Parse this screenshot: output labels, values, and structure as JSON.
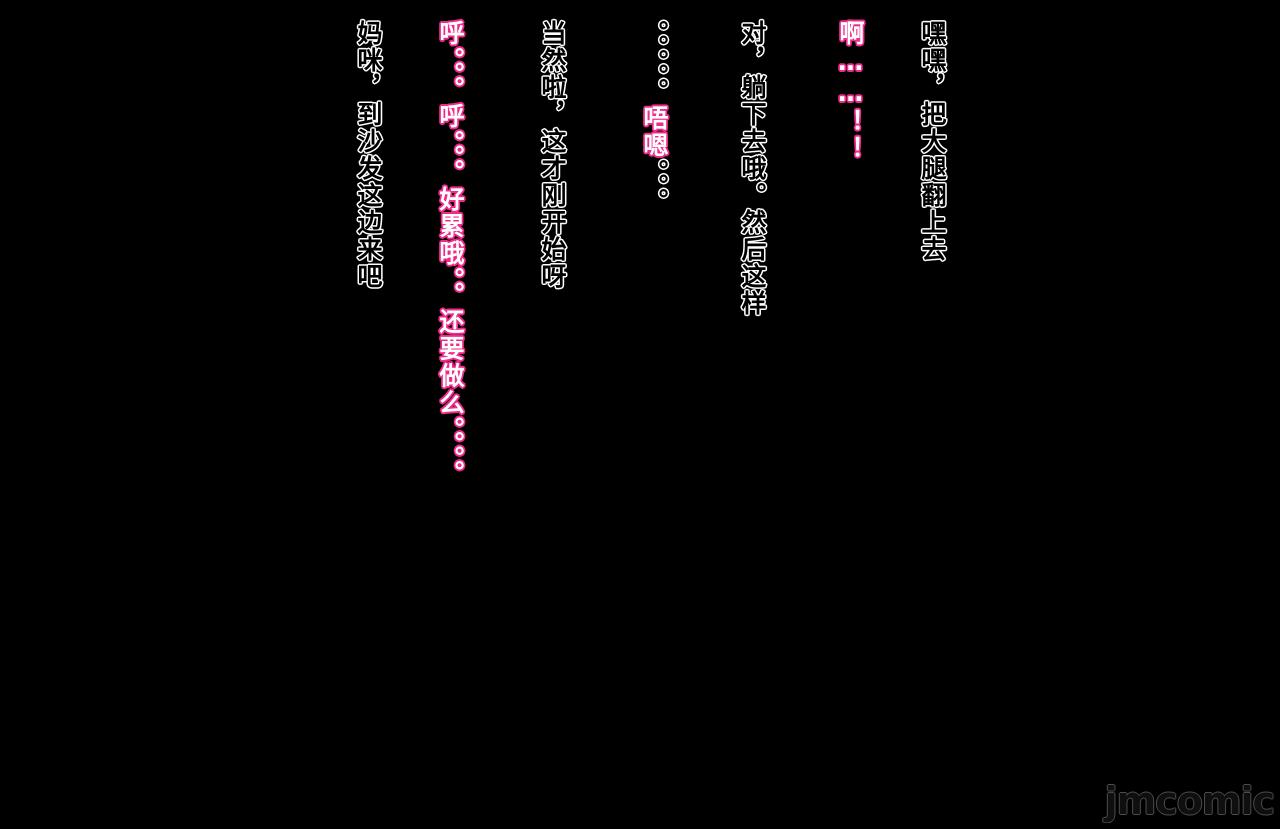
{
  "lines": [
    {
      "text": "嘿嘿，把大腿翻上去",
      "style": "white"
    },
    {
      "text": "啊……！！",
      "style": "pink"
    },
    {
      "text": "对，躺下去哦。然后这样",
      "style": "white"
    },
    {
      "text": "。。。。。唔嗯。。。",
      "style": "mixed"
    },
    {
      "text": "当然啦，这才刚开始呀",
      "style": "white"
    },
    {
      "text": "呼。。。呼。。。好累哦。。还要做么。。。。",
      "style": "pink"
    },
    {
      "text": "妈咪，到沙发这边来吧",
      "style": "white"
    }
  ],
  "segments": {
    "l4_dots": "。。。。。",
    "l4_word": "唔嗯",
    "l4_tail": "。。。"
  },
  "watermark": "jmcomic",
  "colors": {
    "background": "#000000",
    "white_outline": "#ffffff",
    "pink_outline": "#ee2a8a"
  }
}
